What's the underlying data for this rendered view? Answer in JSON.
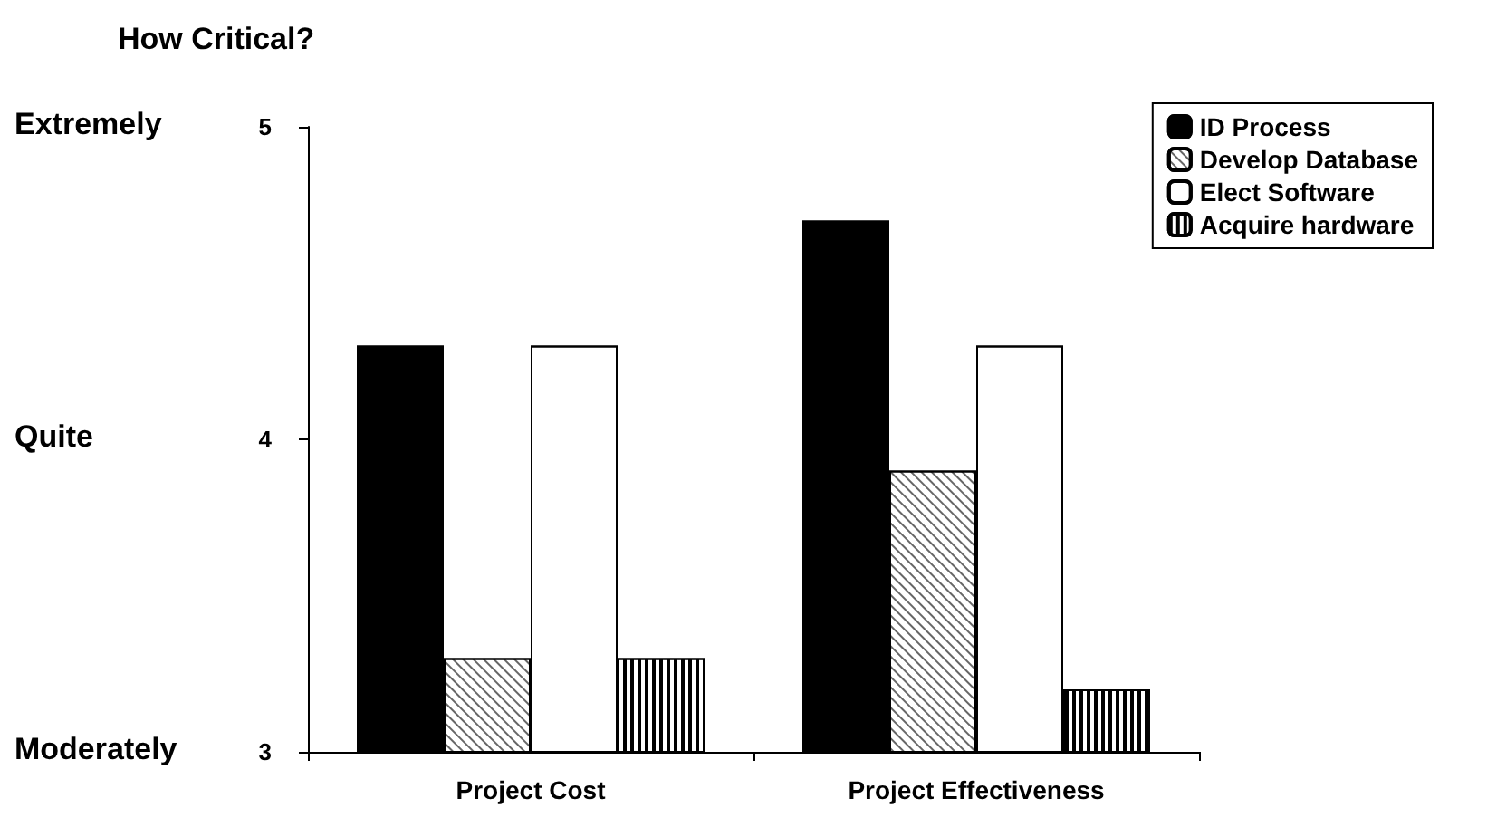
{
  "chart_data": {
    "type": "bar",
    "title": "How Critical?",
    "categories": [
      "Project Cost",
      "Project Effectiveness"
    ],
    "series": [
      {
        "name": "ID Process",
        "color": "#000000",
        "values": [
          4.3,
          4.7
        ]
      },
      {
        "name": "Develop Database",
        "color": "#ffffff",
        "values": [
          3.3,
          3.9
        ]
      },
      {
        "name": "Elect Software",
        "color": "#ffffff",
        "values": [
          4.3,
          4.3
        ]
      },
      {
        "name": "Acquire hardware",
        "color": "#ffffff",
        "values": [
          3.3,
          3.2
        ]
      }
    ],
    "ylim": [
      3,
      5
    ],
    "yticks": [
      3,
      4,
      5
    ],
    "annotations": [
      "Extremely",
      "Quite",
      "Moderately"
    ],
    "grid": false,
    "legend": "top right"
  }
}
